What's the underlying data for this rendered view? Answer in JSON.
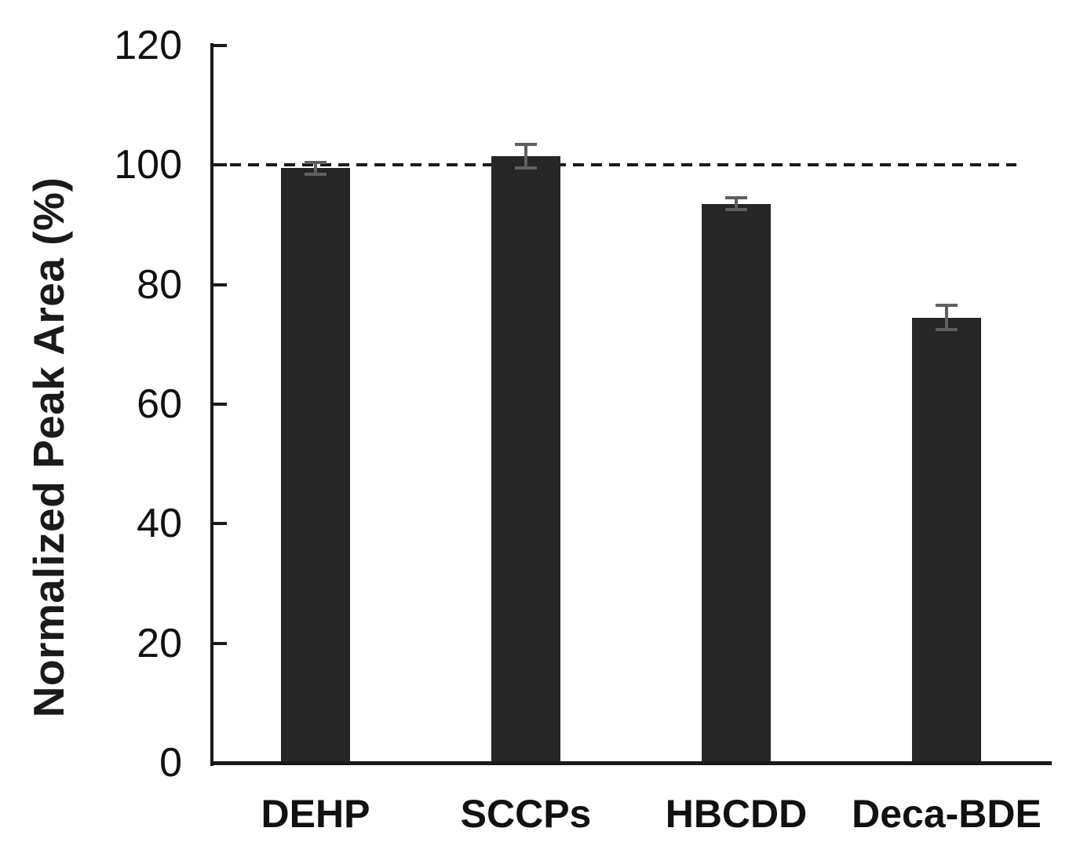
{
  "figure": {
    "background": "#ffffff"
  },
  "chart_data": {
    "type": "bar",
    "categories": [
      "DEHP",
      "SCCPs",
      "HBCDD",
      "Deca-BDE"
    ],
    "values": [
      99.5,
      101.5,
      93.5,
      74.5
    ],
    "errors": [
      1.0,
      2.0,
      1.0,
      2.0
    ],
    "title": "",
    "xlabel": "",
    "ylabel": "Normalized Peak Area (%)",
    "ylim": [
      0,
      120
    ],
    "yticks": [
      0,
      20,
      40,
      60,
      80,
      100,
      120
    ],
    "reference_line": {
      "y": 100,
      "style": "dashed"
    },
    "grid": false,
    "legend": null,
    "colors": {
      "bar_fill": "#262626",
      "error_bar": "#606060",
      "axis": "#1a1a1a",
      "text": "#111111",
      "dashed_line": "#1a1a1a"
    }
  }
}
